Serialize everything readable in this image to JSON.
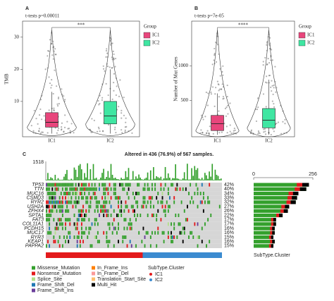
{
  "chart_data": [
    {
      "type": "box",
      "panel_label": "A",
      "title": "t-tests p=0.00011",
      "ylabel": "TMB",
      "categories": [
        "IC1",
        "IC2"
      ],
      "colors": [
        "#e8467c",
        "#3fe6a2"
      ],
      "boxes": [
        {
          "q1": 2,
          "median": 3.5,
          "q3": 6.5,
          "whisker_low": 0,
          "whisker_high": 13
        },
        {
          "q1": 3,
          "median": 5.5,
          "q3": 10,
          "whisker_low": 0,
          "whisker_high": 20
        }
      ],
      "ylim": [
        -1,
        35
      ],
      "yticks": [
        10,
        20,
        30
      ],
      "significance": "***",
      "legend_title": "Group"
    },
    {
      "type": "box",
      "panel_label": "B",
      "title": "t-tests p=7e-05",
      "ylabel": "Number of Mut Genes",
      "categories": [
        "IC1",
        "IC2"
      ],
      "colors": [
        "#e8467c",
        "#3fe6a2"
      ],
      "boxes": [
        {
          "q1": 60,
          "median": 160,
          "q3": 280,
          "whisker_low": 0,
          "whisker_high": 600
        },
        {
          "q1": 100,
          "median": 210,
          "q3": 380,
          "whisker_low": 0,
          "whisker_high": 800
        }
      ],
      "ylim": [
        -30,
        1650
      ],
      "yticks": [
        500,
        1000
      ],
      "significance": "****",
      "legend_title": "Group"
    },
    {
      "type": "oncoplot",
      "panel_label": "C",
      "title": "Altered in 436 (76.9%) of 567 samples.",
      "top_max": 1518,
      "right_ticks": [
        0,
        256
      ],
      "genes": [
        "TP53",
        "TTN",
        "MUC16",
        "CSMD3",
        "RYR2",
        "USH2A",
        "ZFHX4",
        "SPTA1",
        "FAT3",
        "COL11A1",
        "PCDH15",
        "MUC17",
        "RYR3",
        "KEAP1",
        "PAPPA2"
      ],
      "values": [
        42,
        40,
        34,
        33,
        32,
        27,
        26,
        22,
        17,
        17,
        16,
        16,
        15,
        16,
        15
      ],
      "value_labels": [
        "42%",
        "40%",
        "34%",
        "33%",
        "32%",
        "27%",
        "26%",
        "22%",
        "17%",
        "17%",
        "16%",
        "16%",
        "15%",
        "16%",
        "15%"
      ],
      "mutation_types": [
        {
          "name": "Missense_Mutation",
          "color": "#33a02c"
        },
        {
          "name": "Nonsense_Mutation",
          "color": "#e31a1c"
        },
        {
          "name": "Splice_Site",
          "color": "#b2df8a"
        },
        {
          "name": "Frame_Shift_Del",
          "color": "#1f78b4"
        },
        {
          "name": "Frame_Shift_Ins",
          "color": "#6a3d9a"
        },
        {
          "name": "In_Frame_Ins",
          "color": "#ff7f00"
        },
        {
          "name": "In_Frame_Del",
          "color": "#fb9a99"
        },
        {
          "name": "Translation_Start_Site",
          "color": "#fdbf6f"
        },
        {
          "name": "Multi_Hit",
          "color": "#000000"
        }
      ],
      "subtype_title": "SubType.Cluster",
      "subtypes": [
        {
          "name": "IC1",
          "color": "#e31a1c"
        },
        {
          "name": "IC2",
          "color": "#3b8bd0"
        }
      ]
    }
  ]
}
